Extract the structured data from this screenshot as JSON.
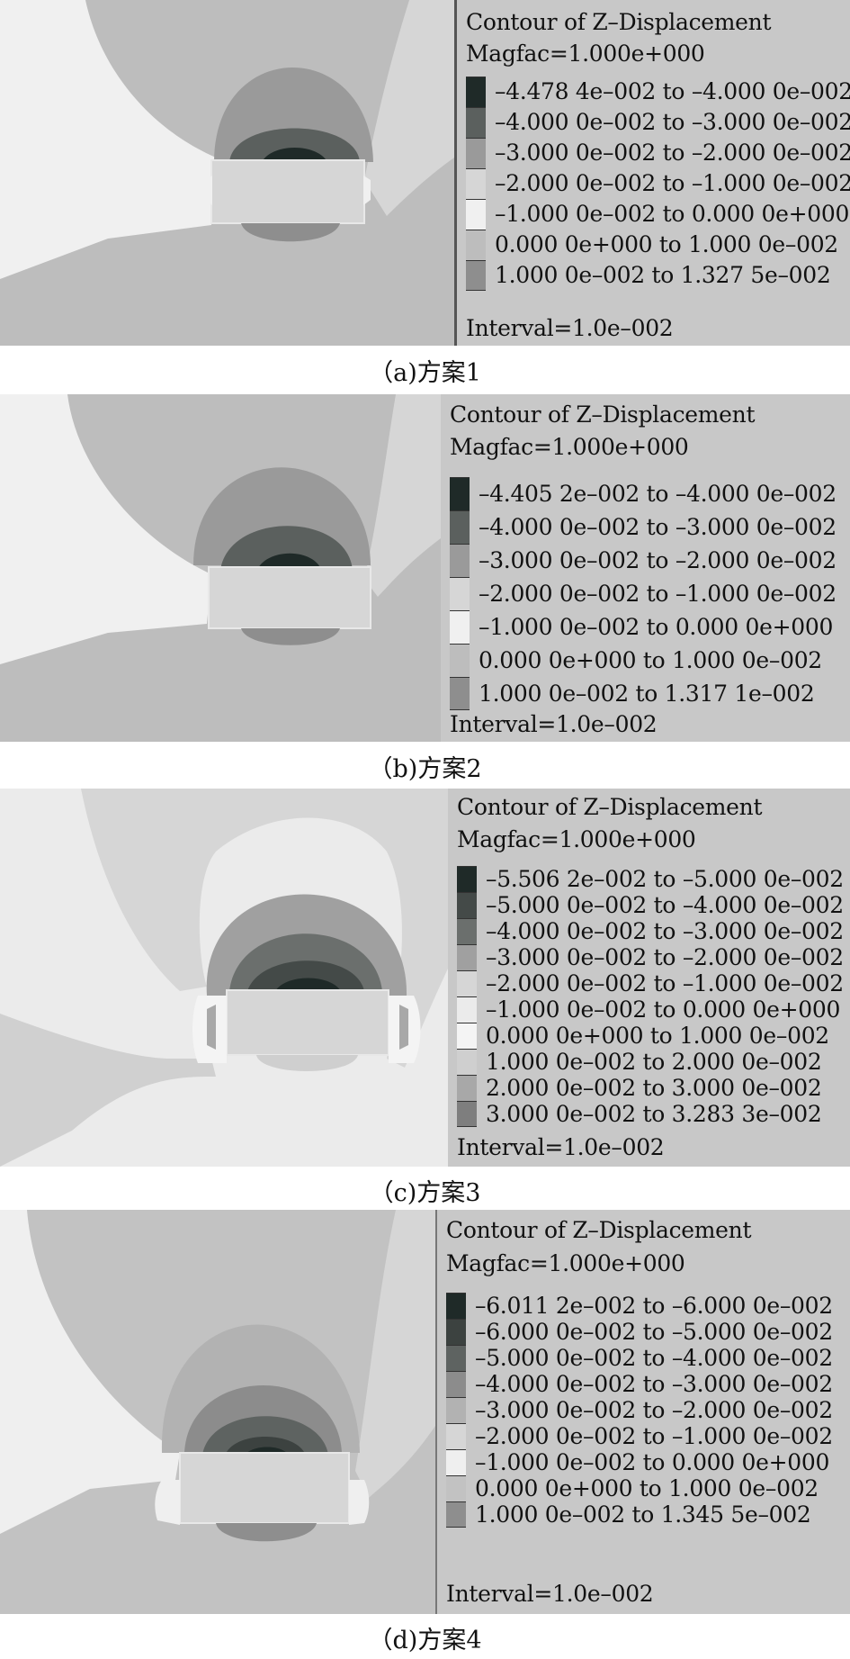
{
  "panels": [
    {
      "caption": "（a)方案1",
      "legend_title": "Contour of Z–Displacement",
      "magfac": "Magfac=1.000e+000",
      "interval": "Interval=1.0e–002",
      "items": [
        {
          "label": "–4.478 4e–002 to –4.000 0e–002",
          "color": "#1f2a28"
        },
        {
          "label": "–4.000 0e–002 to –3.000 0e–002",
          "color": "#5b605e"
        },
        {
          "label": "–3.000 0e–002 to –2.000 0e–002",
          "color": "#9a9a9a"
        },
        {
          "label": "–2.000 0e–002 to –1.000 0e–002",
          "color": "#d6d6d6"
        },
        {
          "label": "–1.000 0e–002 to 0.000 0e+000",
          "color": "#f0f0f0"
        },
        {
          "label": "0.000 0e+000 to 1.000 0e–002",
          "color": "#bdbdbd"
        },
        {
          "label": "1.000 0e–002 to 1.327 5e–002",
          "color": "#8e8e8e"
        }
      ]
    },
    {
      "caption": "（b)方案2",
      "legend_title": "Contour of Z–Displacement",
      "magfac": "Magfac=1.000e+000",
      "interval": "Interval=1.0e–002",
      "items": [
        {
          "label": "–4.405 2e–002 to –4.000 0e–002",
          "color": "#1f2a28"
        },
        {
          "label": "–4.000 0e–002 to –3.000 0e–002",
          "color": "#5b605e"
        },
        {
          "label": "–3.000 0e–002 to –2.000 0e–002",
          "color": "#9a9a9a"
        },
        {
          "label": "–2.000 0e–002 to –1.000 0e–002",
          "color": "#d6d6d6"
        },
        {
          "label": "–1.000 0e–002 to 0.000 0e+000",
          "color": "#f0f0f0"
        },
        {
          "label": "0.000 0e+000 to 1.000 0e–002",
          "color": "#bdbdbd"
        },
        {
          "label": "1.000 0e–002 to 1.317 1e–002",
          "color": "#8e8e8e"
        }
      ]
    },
    {
      "caption": "（c)方案3",
      "legend_title": "Contour of Z–Displacement",
      "magfac": "Magfac=1.000e+000",
      "interval": "Interval=1.0e–002",
      "items": [
        {
          "label": "–5.506 2e–002 to –5.000 0e–002",
          "color": "#1f2a28"
        },
        {
          "label": "–5.000 0e–002 to –4.000 0e–002",
          "color": "#444a48"
        },
        {
          "label": "–4.000 0e–002 to –3.000 0e–002",
          "color": "#6b6f6d"
        },
        {
          "label": "–3.000 0e–002 to –2.000 0e–002",
          "color": "#a0a0a0"
        },
        {
          "label": "–2.000 0e–002 to –1.000 0e–002",
          "color": "#d6d6d6"
        },
        {
          "label": "–1.000 0e–002 to 0.000 0e+000",
          "color": "#ebebeb"
        },
        {
          "label": "0.000 0e+000 to 1.000 0e–002",
          "color": "#f4f4f4"
        },
        {
          "label": "1.000 0e–002 to 2.000 0e–002",
          "color": "#cfcfcf"
        },
        {
          "label": "2.000 0e–002 to 3.000 0e–002",
          "color": "#a8a8a8"
        },
        {
          "label": "3.000 0e–002 to 3.283 3e–002",
          "color": "#7e7e7e"
        }
      ]
    },
    {
      "caption": "（d)方案4",
      "legend_title": "Contour of Z–Displacement",
      "magfac": "Magfac=1.000e+000",
      "interval": "Interval=1.0e–002",
      "items": [
        {
          "label": "–6.011 2e–002 to –6.000 0e–002",
          "color": "#1f2a28"
        },
        {
          "label": "–6.000 0e–002 to –5.000 0e–002",
          "color": "#3c4240"
        },
        {
          "label": "–5.000 0e–002 to –4.000 0e–002",
          "color": "#5e6361"
        },
        {
          "label": "–4.000 0e–002 to –3.000 0e–002",
          "color": "#8c8c8c"
        },
        {
          "label": "–3.000 0e–002 to –2.000 0e–002",
          "color": "#b2b2b2"
        },
        {
          "label": "–2.000 0e–002 to –1.000 0e–002",
          "color": "#d6d6d6"
        },
        {
          "label": "–1.000 0e–002 to 0.000 0e+000",
          "color": "#efefef"
        },
        {
          "label": "0.000 0e+000 to 1.000 0e–002",
          "color": "#c2c2c2"
        },
        {
          "label": "1.000 0e–002 to 1.345 5e–002",
          "color": "#8e8e8e"
        }
      ]
    }
  ]
}
